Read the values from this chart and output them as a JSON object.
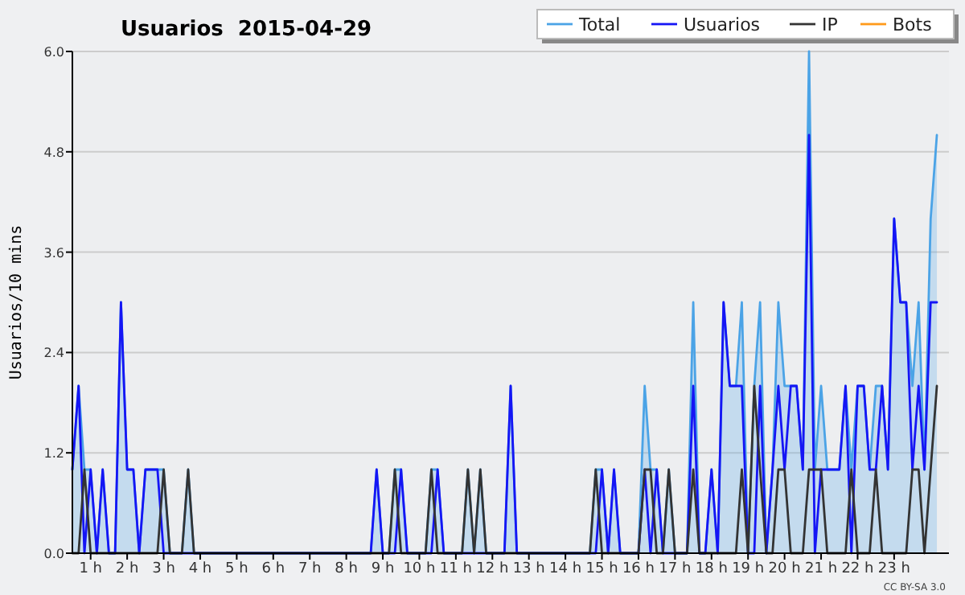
{
  "chart_data": {
    "type": "line",
    "title": "Usuarios  2015-04-29",
    "ylabel": "Usuarios/10 mins",
    "annotations": [
      "CC BY-SA 3.0"
    ],
    "x": [
      0.5,
      0.67,
      0.83,
      1,
      1.17,
      1.33,
      1.5,
      1.67,
      1.83,
      2,
      2.17,
      2.33,
      2.5,
      2.67,
      2.83,
      3,
      3.17,
      3.33,
      3.5,
      3.67,
      3.83,
      4,
      4.17,
      4.33,
      4.5,
      4.67,
      4.83,
      5,
      5.17,
      5.33,
      5.5,
      5.67,
      5.83,
      6,
      6.17,
      6.33,
      6.5,
      6.67,
      6.83,
      7,
      7.17,
      7.33,
      7.5,
      7.67,
      7.83,
      8,
      8.17,
      8.33,
      8.5,
      8.67,
      8.83,
      9,
      9.17,
      9.33,
      9.5,
      9.67,
      9.83,
      10,
      10.17,
      10.33,
      10.5,
      10.67,
      10.83,
      11,
      11.17,
      11.33,
      11.5,
      11.67,
      11.83,
      12,
      12.17,
      12.33,
      12.5,
      12.67,
      12.83,
      13,
      13.17,
      13.33,
      13.5,
      13.67,
      13.83,
      14,
      14.17,
      14.33,
      14.5,
      14.67,
      14.83,
      15,
      15.17,
      15.33,
      15.5,
      15.67,
      15.83,
      16,
      16.17,
      16.33,
      16.5,
      16.67,
      16.83,
      17,
      17.17,
      17.33,
      17.5,
      17.67,
      17.83,
      18,
      18.17,
      18.33,
      18.5,
      18.67,
      18.83,
      19,
      19.17,
      19.33,
      19.5,
      19.67,
      19.83,
      20,
      20.17,
      20.33,
      20.5,
      20.67,
      20.83,
      21,
      21.17,
      21.33,
      21.5,
      21.67,
      21.83,
      22,
      22.17,
      22.33,
      22.5,
      22.67,
      22.83,
      23,
      23.17,
      23.33,
      23.5,
      23.67,
      23.83,
      24,
      24.17
    ],
    "series": [
      {
        "name": "Total",
        "type": "area",
        "color": "#4ba3e6",
        "values": [
          1,
          2,
          1,
          1,
          0,
          1,
          0,
          0,
          3,
          1,
          1,
          0,
          1,
          1,
          1,
          1,
          0,
          0,
          0,
          1,
          0,
          0,
          0,
          0,
          0,
          0,
          0,
          0,
          0,
          0,
          0,
          0,
          0,
          0,
          0,
          0,
          0,
          0,
          0,
          0,
          0,
          0,
          0,
          0,
          0,
          0,
          0,
          0,
          0,
          0,
          1,
          0,
          0,
          1,
          1,
          0,
          0,
          0,
          0,
          1,
          1,
          0,
          0,
          0,
          0,
          1,
          0,
          1,
          0,
          0,
          0,
          0,
          2,
          0,
          0,
          0,
          0,
          0,
          0,
          0,
          0,
          0,
          0,
          0,
          0,
          0,
          1,
          1,
          0,
          1,
          0,
          0,
          0,
          0,
          2,
          1,
          1,
          0,
          1,
          0,
          0,
          0,
          3,
          0,
          0,
          1,
          0,
          3,
          2,
          2,
          3,
          0,
          2,
          3,
          0,
          1,
          3,
          2,
          2,
          2,
          1,
          6,
          1,
          2,
          1,
          1,
          1,
          2,
          1,
          2,
          2,
          1,
          2,
          2,
          1,
          4,
          3,
          3,
          2,
          3,
          1,
          4,
          5
        ]
      },
      {
        "name": "Usuarios",
        "color": "#1515f5",
        "values": [
          1,
          2,
          0,
          1,
          0,
          1,
          0,
          0,
          3,
          1,
          1,
          0,
          1,
          1,
          1,
          0,
          0,
          0,
          0,
          0,
          0,
          0,
          0,
          0,
          0,
          0,
          0,
          0,
          0,
          0,
          0,
          0,
          0,
          0,
          0,
          0,
          0,
          0,
          0,
          0,
          0,
          0,
          0,
          0,
          0,
          0,
          0,
          0,
          0,
          0,
          1,
          0,
          0,
          0,
          1,
          0,
          0,
          0,
          0,
          0,
          1,
          0,
          0,
          0,
          0,
          0,
          0,
          0,
          0,
          0,
          0,
          0,
          2,
          0,
          0,
          0,
          0,
          0,
          0,
          0,
          0,
          0,
          0,
          0,
          0,
          0,
          0,
          1,
          0,
          1,
          0,
          0,
          0,
          0,
          1,
          0,
          1,
          0,
          0,
          0,
          0,
          0,
          2,
          0,
          0,
          1,
          0,
          3,
          2,
          2,
          2,
          0,
          0,
          2,
          0,
          1,
          2,
          1,
          2,
          2,
          1,
          5,
          0,
          1,
          1,
          1,
          1,
          2,
          0,
          2,
          2,
          1,
          1,
          2,
          1,
          4,
          3,
          3,
          1,
          2,
          1,
          3,
          3
        ]
      },
      {
        "name": "IP",
        "color": "#333333",
        "values": [
          0,
          0,
          1,
          0,
          0,
          0,
          0,
          0,
          0,
          0,
          0,
          0,
          0,
          0,
          0,
          1,
          0,
          0,
          0,
          1,
          0,
          0,
          0,
          0,
          0,
          0,
          0,
          0,
          0,
          0,
          0,
          0,
          0,
          0,
          0,
          0,
          0,
          0,
          0,
          0,
          0,
          0,
          0,
          0,
          0,
          0,
          0,
          0,
          0,
          0,
          0,
          0,
          0,
          1,
          0,
          0,
          0,
          0,
          0,
          1,
          0,
          0,
          0,
          0,
          0,
          1,
          0,
          1,
          0,
          0,
          0,
          0,
          0,
          0,
          0,
          0,
          0,
          0,
          0,
          0,
          0,
          0,
          0,
          0,
          0,
          0,
          1,
          0,
          0,
          0,
          0,
          0,
          0,
          0,
          1,
          1,
          0,
          0,
          1,
          0,
          0,
          0,
          1,
          0,
          0,
          0,
          0,
          0,
          0,
          0,
          1,
          0,
          2,
          1,
          0,
          0,
          1,
          1,
          0,
          0,
          0,
          1,
          1,
          1,
          0,
          0,
          0,
          0,
          1,
          0,
          0,
          0,
          1,
          0,
          0,
          0,
          0,
          0,
          1,
          1,
          0,
          1,
          2
        ]
      },
      {
        "name": "Bots",
        "color": "#ff9a1a",
        "values": [
          null,
          null,
          null,
          null,
          null,
          null,
          null,
          null,
          null,
          null,
          null,
          null,
          null,
          null,
          null,
          null,
          null,
          null,
          null,
          null,
          null,
          null,
          null,
          null,
          null,
          null,
          null,
          null,
          null,
          null,
          null,
          null,
          null,
          null,
          null,
          null,
          null,
          null,
          null,
          null,
          null,
          null,
          null,
          null,
          null,
          null,
          null,
          null,
          null,
          null,
          null,
          null,
          null,
          null,
          null,
          null,
          null,
          null,
          null,
          null,
          null,
          null,
          null,
          null,
          null,
          null,
          null,
          null,
          null,
          null,
          null,
          null,
          null,
          null,
          null,
          null,
          null,
          null,
          null,
          null,
          null,
          null,
          null,
          null,
          null,
          null,
          null,
          null,
          null,
          null,
          null,
          null,
          null,
          null,
          null,
          null,
          null,
          null,
          null,
          null,
          null,
          null,
          null,
          null,
          null,
          null,
          null,
          null,
          null,
          null,
          null,
          null,
          null,
          null,
          null,
          null,
          null,
          null,
          null,
          null,
          null,
          null,
          null,
          null,
          null,
          null,
          null,
          null,
          null,
          null,
          null,
          null,
          null,
          null,
          null,
          null,
          null,
          null,
          null,
          null,
          null,
          null,
          null
        ]
      }
    ],
    "xlim": [
      0.5,
      24.5
    ],
    "xticks": [
      {
        "value": 1,
        "label": "1 h"
      },
      {
        "value": 2,
        "label": "2 h"
      },
      {
        "value": 3,
        "label": "3 h"
      },
      {
        "value": 4,
        "label": "4 h"
      },
      {
        "value": 5,
        "label": "5 h"
      },
      {
        "value": 6,
        "label": "6 h"
      },
      {
        "value": 7,
        "label": "7 h"
      },
      {
        "value": 8,
        "label": "8 h"
      },
      {
        "value": 9,
        "label": "9 h"
      },
      {
        "value": 10,
        "label": "10 h"
      },
      {
        "value": 11,
        "label": "11 h"
      },
      {
        "value": 12,
        "label": "12 h"
      },
      {
        "value": 13,
        "label": "13 h"
      },
      {
        "value": 14,
        "label": "14 h"
      },
      {
        "value": 15,
        "label": "15 h"
      },
      {
        "value": 16,
        "label": "16 h"
      },
      {
        "value": 17,
        "label": "17 h"
      },
      {
        "value": 18,
        "label": "18 h"
      },
      {
        "value": 19,
        "label": "19 h"
      },
      {
        "value": 20,
        "label": "20 h"
      },
      {
        "value": 21,
        "label": "21 h"
      },
      {
        "value": 22,
        "label": "22 h"
      },
      {
        "value": 23,
        "label": "23 h"
      }
    ],
    "ylim": [
      0,
      6
    ],
    "yticks": [
      {
        "value": 0,
        "label": "0.0"
      },
      1.2,
      2.4,
      3.6,
      4.8,
      {
        "value": 6,
        "label": "6.0"
      }
    ],
    "grid": "y",
    "legend": "top right"
  }
}
